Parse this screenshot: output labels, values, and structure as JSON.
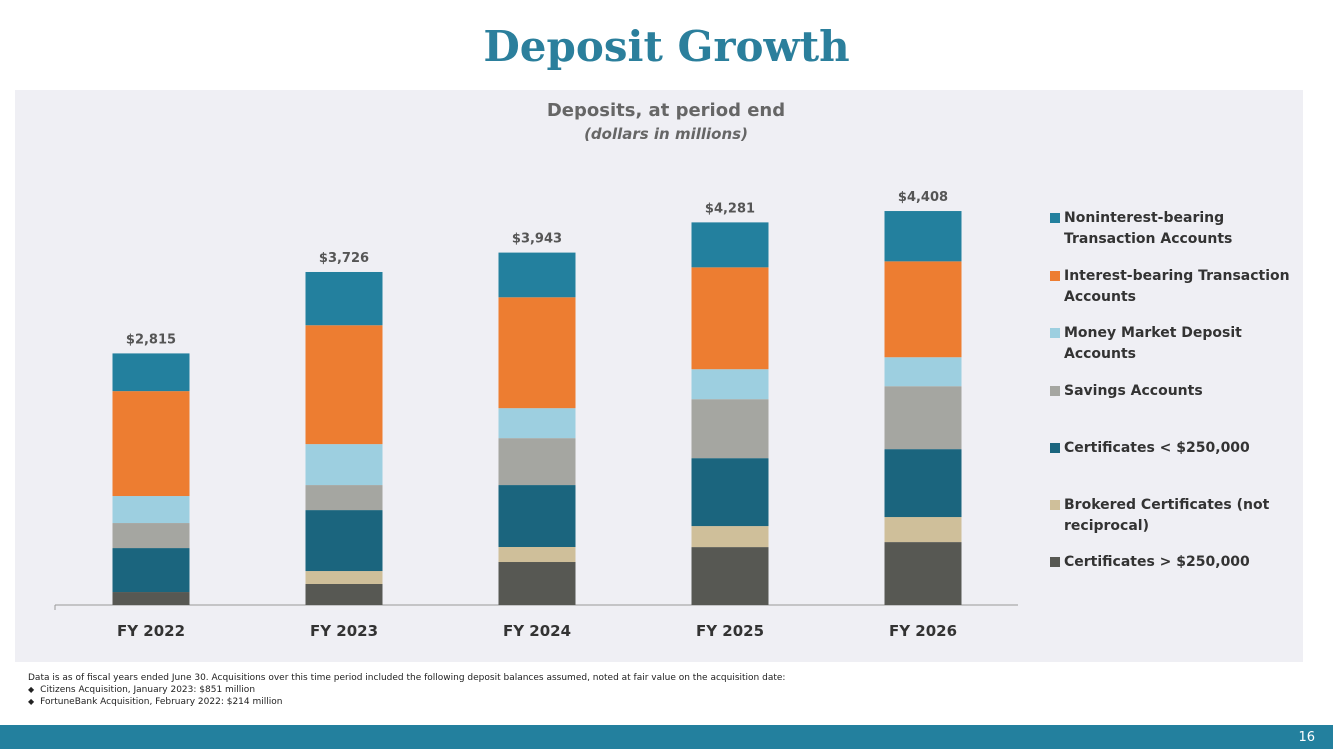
{
  "page": {
    "title": "Deposit Growth",
    "footnote": {
      "text": "Data is as of fiscal years ended June 30. Acquisitions over this time period included the following deposit balances assumed, noted at fair value on the acquisition date:",
      "items": [
        "Citizens Acquisition, January 2023: $851 million",
        "FortuneBank Acquisition, February 2022: $214 million"
      ]
    },
    "page_number": "16"
  },
  "chart_data": {
    "type": "stacked_bar",
    "title": "Deposits, at period end",
    "subtitle": "(dollars in millions)",
    "categories": [
      "FY 2022",
      "FY 2023",
      "FY 2024",
      "FY 2025",
      "FY 2026"
    ],
    "ylim": [
      0,
      4800
    ],
    "series": [
      {
        "name": "Noninterest-bearing Transaction Accounts",
        "color": "#23809e",
        "values": [
          422,
          596,
          500,
          503,
          563
        ]
      },
      {
        "name": "Interest-bearing Transaction Accounts",
        "color": "#ed7d31",
        "values": [
          1174,
          1330,
          1241,
          1140,
          1073
        ]
      },
      {
        "name": "Money Market Deposit Accounts",
        "color": "#9dcfe0",
        "values": [
          302,
          458,
          335,
          335,
          324
        ]
      },
      {
        "name": "Savings Accounts",
        "color": "#a5a6a1",
        "values": [
          280,
          280,
          525,
          660,
          704
        ]
      },
      {
        "name": "Certificates < $250,000",
        "color": "#1b657e",
        "values": [
          492,
          682,
          693,
          760,
          760
        ]
      },
      {
        "name": "Brokered Certificates (not reciprocal)",
        "color": "#cfbf9a",
        "values": [
          0,
          145,
          168,
          235,
          280
        ]
      },
      {
        "name": "Certificates > $250,000",
        "color": "#575853",
        "values": [
          145,
          235,
          481,
          648,
          704
        ]
      }
    ],
    "totals": [
      2815,
      3726,
      3943,
      4281,
      4408
    ],
    "total_labels": [
      "$2,815",
      "$3,726",
      "$3,943",
      "$4,281",
      "$4,408"
    ],
    "legend": "right"
  }
}
